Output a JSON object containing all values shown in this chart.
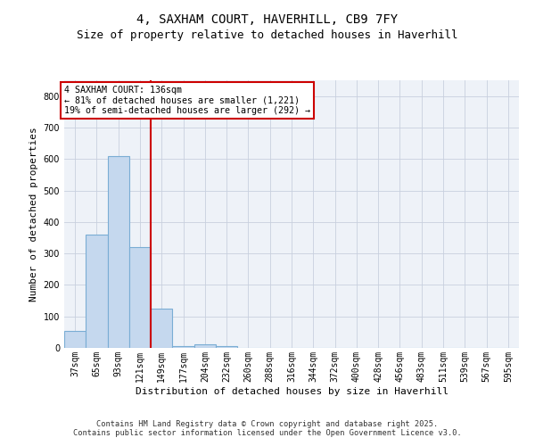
{
  "title1": "4, SAXHAM COURT, HAVERHILL, CB9 7FY",
  "title2": "Size of property relative to detached houses in Haverhill",
  "xlabel": "Distribution of detached houses by size in Haverhill",
  "ylabel": "Number of detached properties",
  "categories": [
    "37sqm",
    "65sqm",
    "93sqm",
    "121sqm",
    "149sqm",
    "177sqm",
    "204sqm",
    "232sqm",
    "260sqm",
    "288sqm",
    "316sqm",
    "344sqm",
    "372sqm",
    "400sqm",
    "428sqm",
    "456sqm",
    "483sqm",
    "511sqm",
    "539sqm",
    "567sqm",
    "595sqm"
  ],
  "values": [
    55,
    360,
    610,
    320,
    125,
    5,
    10,
    5,
    0,
    0,
    0,
    0,
    0,
    0,
    0,
    0,
    0,
    0,
    0,
    0,
    0
  ],
  "bar_color": "#c5d8ee",
  "bar_edge_color": "#7aadd4",
  "vline_color": "#cc0000",
  "annotation_line1": "4 SAXHAM COURT: 136sqm",
  "annotation_line2": "← 81% of detached houses are smaller (1,221)",
  "annotation_line3": "19% of semi-detached houses are larger (292) →",
  "annotation_box_color": "#ffffff",
  "annotation_box_edge": "#cc0000",
  "ylim": [
    0,
    850
  ],
  "yticks": [
    0,
    100,
    200,
    300,
    400,
    500,
    600,
    700,
    800
  ],
  "background_color": "#eef2f8",
  "footer_line1": "Contains HM Land Registry data © Crown copyright and database right 2025.",
  "footer_line2": "Contains public sector information licensed under the Open Government Licence v3.0.",
  "title_fontsize": 10,
  "subtitle_fontsize": 9,
  "tick_fontsize": 7,
  "axis_label_fontsize": 8
}
